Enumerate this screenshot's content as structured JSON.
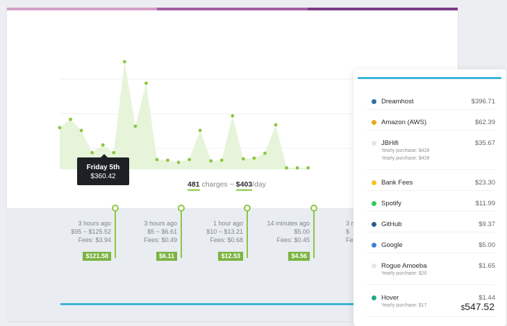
{
  "colors": {
    "accent_green": "#8cc63f",
    "badge_green": "#7cb342",
    "accent_blue": "#3bb4d6",
    "top_bar": [
      "#d39ec6",
      "#a55fa3",
      "#7a3a86"
    ]
  },
  "chart_data": {
    "type": "area",
    "y": [
      60,
      72,
      56,
      24,
      35,
      24,
      155,
      62,
      124,
      14,
      13,
      10,
      14,
      56,
      12,
      13,
      77,
      15,
      16,
      23,
      64,
      2,
      2,
      2
    ],
    "ylim": [
      0,
      185
    ],
    "grid": true,
    "legend": "none"
  },
  "tooltip": {
    "title": "Friday 5th",
    "value": "$360.42"
  },
  "summary": {
    "charges": "481",
    "charges_label": "charges",
    "sep": "~",
    "per_day": "$403",
    "per_day_label": "/day"
  },
  "timeline": [
    {
      "time": "3 hours ago",
      "range": "$95 ~ $125.52",
      "fees": "Fees: $3.94",
      "net": "$121.58"
    },
    {
      "time": "3 hours ago",
      "range": "$5 ~ $6.61",
      "fees": "Fees: $0.49",
      "net": "$6.11"
    },
    {
      "time": "1 hour ago",
      "range": "$10 ~ $13.21",
      "fees": "Fees: $0.68",
      "net": "$12.53"
    },
    {
      "time": "14 minutes ago",
      "range": "$5.00",
      "fees": "Fees: $0.45",
      "net": "$4.56"
    },
    {
      "time": "3 mi",
      "range": "$",
      "fees": "Fe",
      "net": ""
    }
  ],
  "expenses": [
    {
      "name": "Dreamhost",
      "amount": "$396.71",
      "color": "#2c6ea4",
      "subs": []
    },
    {
      "name": "Amazon (AWS)",
      "amount": "$62.39",
      "color": "#e9a91e",
      "subs": []
    },
    {
      "name": "JBHifi",
      "amount": "$35.67",
      "color": "#e3e5e8",
      "subs": [
        "Yearly purchase: $428",
        "Yearly purchase: $428"
      ]
    },
    {
      "name": "Bank Fees",
      "amount": "$23.30",
      "color": "#f3c622",
      "subs": []
    },
    {
      "name": "Spotify",
      "amount": "$11.99",
      "color": "#2ecc5b",
      "subs": []
    },
    {
      "name": "GitHub",
      "amount": "$9.37",
      "color": "#2d5a8a",
      "subs": []
    },
    {
      "name": "Google",
      "amount": "$5.00",
      "color": "#3a7fd0",
      "subs": []
    },
    {
      "name": "Rogue Amoeba",
      "amount": "$1.65",
      "color": "#e3e5e8",
      "subs": [
        "Yearly purchase: $20"
      ]
    },
    {
      "name": "Hover",
      "amount": "$1.44",
      "color": "#22a889",
      "subs": [
        "Yearly purchase: $17"
      ]
    }
  ],
  "total": {
    "currency": "$",
    "value": "547.52"
  }
}
